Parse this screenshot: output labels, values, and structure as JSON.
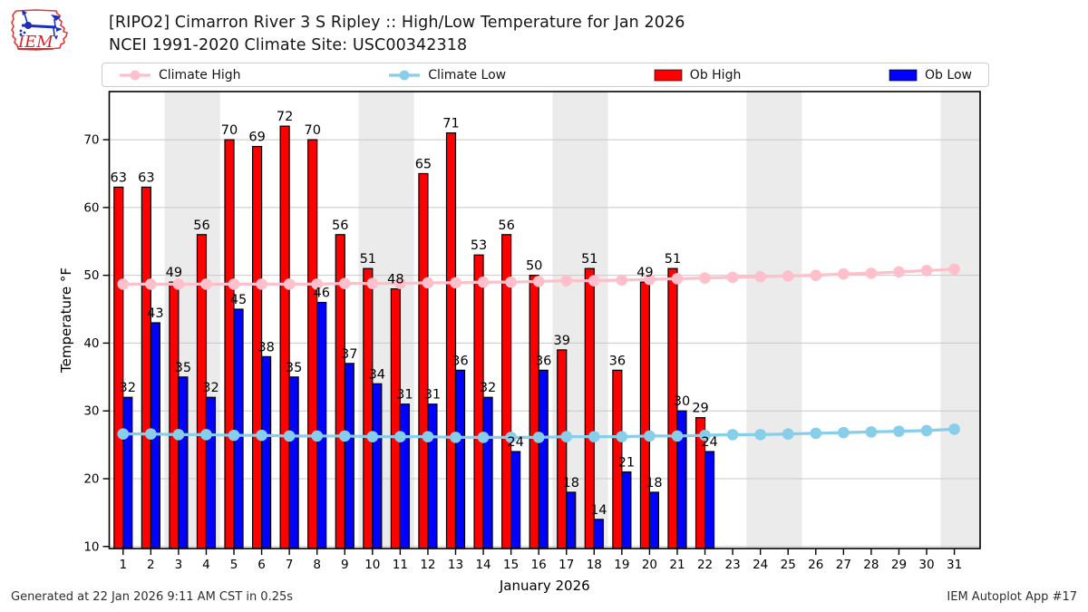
{
  "header": {
    "title_line1": "[RIPO2] Cimarron River 3 S Ripley :: High/Low Temperature for Jan 2026",
    "title_line2": "NCEI 1991-2020 Climate Site: USC00342318",
    "logo_text": "IEM"
  },
  "legend": {
    "items": [
      {
        "label": "Climate High",
        "type": "line",
        "color": "#ffc0cb"
      },
      {
        "label": "Climate Low",
        "type": "line",
        "color": "#87ceeb"
      },
      {
        "label": "Ob High",
        "type": "patch",
        "color": "#ff0000"
      },
      {
        "label": "Ob Low",
        "type": "patch",
        "color": "#0000ff"
      }
    ]
  },
  "footer": {
    "left": "Generated at 22 Jan 2026 9:11 AM CST in 0.25s",
    "right": "IEM Autoplot App #17"
  },
  "chart_data": {
    "type": "bar",
    "title": "[RIPO2] Cimarron River 3 S Ripley :: High/Low Temperature for Jan 2026",
    "subtitle": "NCEI 1991-2020 Climate Site: USC00342318",
    "xlabel": "January 2026",
    "ylabel": "Temperature °F",
    "x": [
      1,
      2,
      3,
      4,
      5,
      6,
      7,
      8,
      9,
      10,
      11,
      12,
      13,
      14,
      15,
      16,
      17,
      18,
      19,
      20,
      21,
      22,
      23,
      24,
      25,
      26,
      27,
      28,
      29,
      30,
      31
    ],
    "yticks": [
      10,
      20,
      30,
      40,
      50,
      60,
      70
    ],
    "xlim": [
      0.5,
      31.93
    ],
    "ylim": [
      9.7,
      77.1
    ],
    "grid": "horizontal",
    "legend_position": "top",
    "weekend_bands": [
      [
        2.5,
        4.5
      ],
      [
        9.5,
        11.5
      ],
      [
        16.5,
        18.5
      ],
      [
        23.5,
        25.5
      ],
      [
        30.5,
        31.93
      ]
    ],
    "band_color": "#ebebeb",
    "series": [
      {
        "name": "Ob High",
        "type": "bar",
        "color": "#ff0000",
        "values": [
          63,
          63,
          49,
          56,
          70,
          69,
          72,
          70,
          56,
          51,
          48,
          65,
          71,
          53,
          56,
          50,
          39,
          51,
          36,
          49,
          51,
          29,
          null,
          null,
          null,
          null,
          null,
          null,
          null,
          null,
          null
        ]
      },
      {
        "name": "Ob Low",
        "type": "bar",
        "color": "#0000ff",
        "values": [
          32,
          43,
          35,
          32,
          45,
          38,
          35,
          46,
          37,
          34,
          31,
          31,
          36,
          32,
          24,
          36,
          18,
          14,
          21,
          18,
          30,
          24,
          null,
          null,
          null,
          null,
          null,
          null,
          null,
          null,
          null
        ]
      },
      {
        "name": "Climate High",
        "type": "line",
        "color": "#ffc0cb",
        "values": [
          48.7,
          48.7,
          48.7,
          48.7,
          48.7,
          48.7,
          48.7,
          48.7,
          48.8,
          48.8,
          48.8,
          48.9,
          48.9,
          49.0,
          49.0,
          49.1,
          49.2,
          49.2,
          49.3,
          49.4,
          49.5,
          49.6,
          49.7,
          49.8,
          49.9,
          50.0,
          50.2,
          50.3,
          50.5,
          50.7,
          50.9
        ]
      },
      {
        "name": "Climate Low",
        "type": "line",
        "color": "#87ceeb",
        "values": [
          26.6,
          26.6,
          26.5,
          26.5,
          26.4,
          26.4,
          26.3,
          26.3,
          26.3,
          26.2,
          26.2,
          26.2,
          26.1,
          26.1,
          26.1,
          26.1,
          26.2,
          26.2,
          26.2,
          26.3,
          26.3,
          26.4,
          26.5,
          26.5,
          26.6,
          26.7,
          26.8,
          26.9,
          27.0,
          27.1,
          27.3
        ]
      }
    ]
  }
}
